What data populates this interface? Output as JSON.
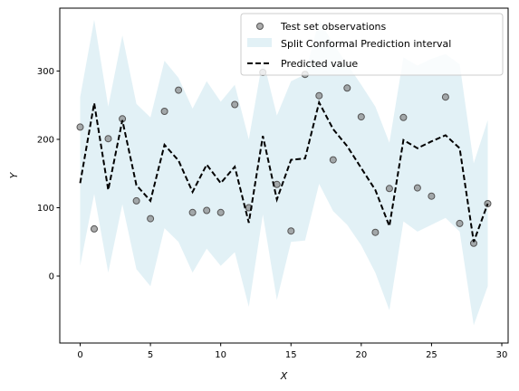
{
  "chart_data": {
    "type": "line",
    "title": "",
    "xlabel": "X",
    "ylabel": "Y",
    "xlim": [
      -1.45,
      30.45
    ],
    "ylim": [
      -98,
      392
    ],
    "xticks": [
      0,
      5,
      10,
      15,
      20,
      25,
      30
    ],
    "yticks": [
      0,
      100,
      200,
      300
    ],
    "grid": false,
    "legend_position": "top-right",
    "x": [
      0,
      1,
      2,
      3,
      4,
      5,
      6,
      7,
      8,
      9,
      10,
      11,
      12,
      13,
      14,
      15,
      16,
      17,
      18,
      19,
      20,
      21,
      22,
      23,
      24,
      25,
      26,
      27,
      28,
      29
    ],
    "series": [
      {
        "name": "Test set observations",
        "kind": "scatter",
        "color": "#808080",
        "values": [
          218,
          69,
          201,
          230,
          110,
          84,
          241,
          272,
          93,
          96,
          93,
          251,
          100,
          298,
          134,
          66,
          295,
          264,
          170,
          275,
          233,
          64,
          128,
          232,
          129,
          117,
          262,
          77,
          48,
          106
        ]
      },
      {
        "name": "Split Conformal Prediction interval",
        "kind": "band",
        "color": "#add8e6",
        "lower": [
          15,
          120,
          5,
          105,
          10,
          -15,
          70,
          50,
          5,
          40,
          15,
          35,
          -45,
          90,
          -35,
          50,
          52,
          135,
          95,
          75,
          45,
          5,
          -50,
          80,
          65,
          75,
          85,
          65,
          -72,
          -15
        ],
        "upper": [
          262,
          375,
          248,
          352,
          252,
          232,
          315,
          290,
          245,
          285,
          255,
          280,
          200,
          318,
          235,
          285,
          295,
          375,
          340,
          310,
          280,
          248,
          195,
          320,
          308,
          318,
          325,
          310,
          165,
          228
        ]
      },
      {
        "name": "Predicted value",
        "kind": "line",
        "color": "#000000",
        "dash": true,
        "values": [
          136,
          253,
          126,
          228,
          133,
          110,
          192,
          169,
          123,
          163,
          136,
          160,
          78,
          205,
          112,
          170,
          172,
          254,
          215,
          190,
          158,
          126,
          73,
          199,
          187,
          197,
          206,
          187,
          50,
          106
        ]
      }
    ]
  }
}
